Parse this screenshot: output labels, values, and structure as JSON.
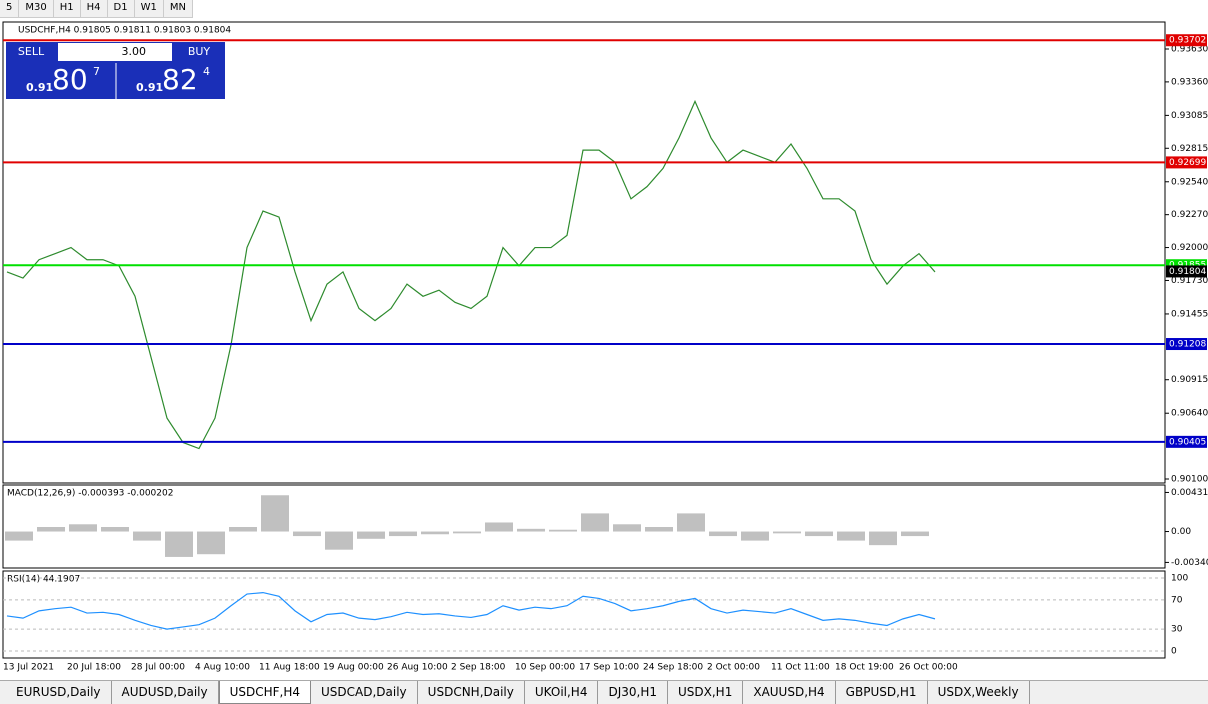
{
  "toolbar": [
    "5",
    "M30",
    "H1",
    "H4",
    "D1",
    "W1",
    "MN"
  ],
  "chart_header": "USDCHF,H4  0.91805 0.91811 0.91803 0.91804",
  "trade_panel": {
    "sell": "SELL",
    "lot": "3.00",
    "buy": "BUY",
    "bid": {
      "big": "0.91",
      "main": "80",
      "small": "7"
    },
    "ask": {
      "big": "0.91",
      "main": "82",
      "small": "4"
    }
  },
  "price_axis": {
    "range": [
      0.901,
      0.9363
    ],
    "ticks": [
      {
        "value": 0.9363,
        "label": "0.93630"
      },
      {
        "value": 0.9336,
        "label": "0.93360"
      },
      0.93085,
      0.92815,
      {
        "value": 0.9254,
        "label": "0.92540"
      },
      {
        "value": 0.9227,
        "label": "0.92270"
      },
      {
        "value": 0.92,
        "label": "0.92000"
      },
      {
        "value": 0.9173,
        "label": "0.91730"
      },
      0.91455,
      0.90915,
      {
        "value": 0.9064,
        "label": "0.90640"
      },
      {
        "value": 0.901,
        "label": "0.90100"
      }
    ]
  },
  "levels": [
    {
      "value": 0.93702,
      "color": "#e00000"
    },
    {
      "value": 0.92699,
      "color": "#e00000"
    },
    {
      "value": 0.91855,
      "color": "#00e000"
    },
    {
      "value": 0.91208,
      "color": "#0000c8"
    },
    {
      "value": 0.90405,
      "color": "#0000c8"
    }
  ],
  "current_price": 0.91804,
  "price_closes": [
    0.918,
    0.9175,
    0.919,
    0.9195,
    0.92,
    0.919,
    0.919,
    0.9185,
    0.916,
    0.911,
    0.906,
    0.904,
    0.9035,
    0.906,
    0.912,
    0.92,
    0.923,
    0.9225,
    0.918,
    0.914,
    0.917,
    0.918,
    0.915,
    0.914,
    0.915,
    0.917,
    0.916,
    0.9165,
    0.9155,
    0.915,
    0.916,
    0.92,
    0.9185,
    0.92,
    0.92,
    0.921,
    0.928,
    0.928,
    0.927,
    0.924,
    0.925,
    0.9265,
    0.929,
    0.932,
    0.929,
    0.927,
    0.928,
    0.9275,
    0.927,
    0.9285,
    0.9265,
    0.924,
    0.924,
    0.923,
    0.919,
    0.917,
    0.9185,
    0.9195,
    0.918
  ],
  "macd": {
    "header": "MACD(12,26,9) -0.000393 -0.000202",
    "range": [
      -0.0038,
      0.0048
    ],
    "ticks": [
      0.00431,
      {
        "value": 0,
        "label": "0.00"
      },
      -0.003405
    ],
    "histogram": [
      -0.001,
      0.0005,
      0.0008,
      0.0005,
      -0.001,
      -0.0028,
      -0.0025,
      0.0005,
      0.004,
      -0.0005,
      -0.002,
      -0.0008,
      -0.0005,
      -0.0003,
      -0.0002,
      0.001,
      0.0003,
      0.0002,
      0.002,
      0.0008,
      0.0005,
      0.002,
      -0.0005,
      -0.001,
      -0.0002,
      -0.0005,
      -0.001,
      -0.0015,
      -0.0005
    ]
  },
  "rsi": {
    "header": "RSI(14) 44.1907",
    "range": [
      0,
      100
    ],
    "ticks": [
      100,
      70,
      30,
      0
    ],
    "values": [
      48,
      45,
      55,
      58,
      60,
      52,
      53,
      50,
      42,
      35,
      30,
      33,
      36,
      45,
      62,
      78,
      80,
      75,
      55,
      40,
      50,
      52,
      45,
      43,
      47,
      53,
      50,
      51,
      48,
      46,
      50,
      62,
      56,
      60,
      58,
      62,
      75,
      72,
      65,
      55,
      58,
      62,
      68,
      72,
      58,
      52,
      56,
      54,
      52,
      58,
      50,
      42,
      44,
      42,
      38,
      35,
      44,
      50,
      44
    ]
  },
  "date_axis": [
    "13 Jul 2021",
    "20 Jul 18:00",
    "28 Jul 00:00",
    "4 Aug 10:00",
    "11 Aug 18:00",
    "19 Aug 00:00",
    "26 Aug 10:00",
    "2 Sep 18:00",
    "10 Sep 00:00",
    "17 Sep 10:00",
    "24 Sep 18:00",
    "2 Oct 00:00",
    "11 Oct 11:00",
    "18 Oct 19:00",
    "26 Oct 00:00"
  ],
  "tabs": [
    "EURUSD,Daily",
    "AUDUSD,Daily",
    "USDCHF,H4",
    "USDCAD,Daily",
    "USDCNH,Daily",
    "UKOil,H4",
    "DJ30,H1",
    "USDX,H1",
    "XAUUSD,H4",
    "GBPUSD,H1",
    "USDX,Weekly"
  ],
  "active_tab": "USDCHF,H4"
}
